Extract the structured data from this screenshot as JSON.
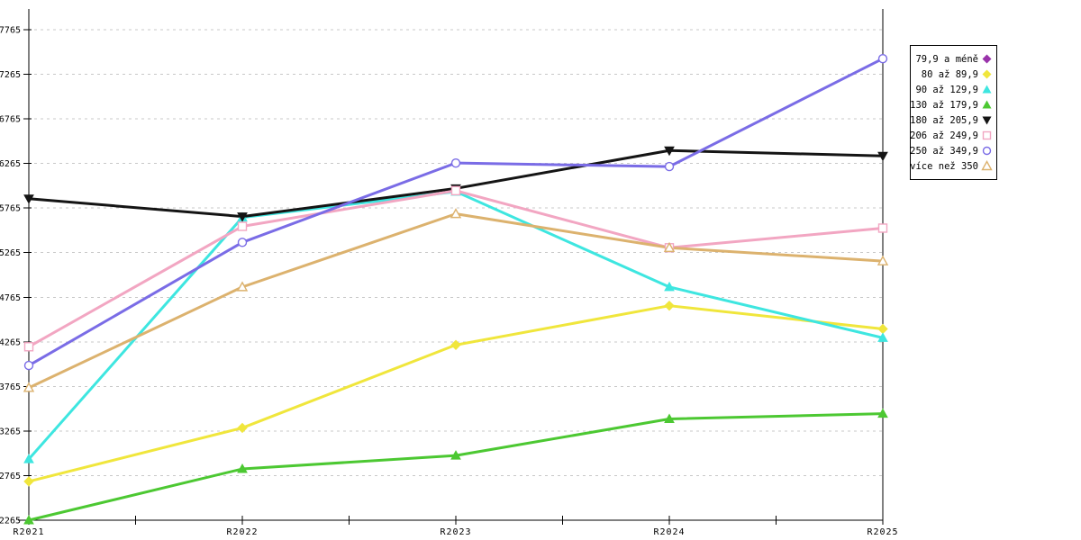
{
  "chart_data": {
    "type": "line",
    "categories": [
      "R2021",
      "R2022",
      "R2023",
      "R2024",
      "R2025"
    ],
    "series": [
      {
        "name": "79,9 a méně",
        "color": "#9933aa",
        "marker": "diamond-filled",
        "values": []
      },
      {
        "name": "80 až 89,9",
        "color": "#f0e63c",
        "marker": "diamond-filled",
        "values": [
          2700,
          3300,
          4230,
          4670,
          4410
        ]
      },
      {
        "name": "90 až 129,9",
        "color": "#3ee6e0",
        "marker": "triangle-up-filled",
        "values": [
          2950,
          5660,
          5950,
          4880,
          4310
        ]
      },
      {
        "name": "130 až 179,9",
        "color": "#4cc832",
        "marker": "triangle-up-filled",
        "values": [
          2265,
          2840,
          2990,
          3400,
          3460
        ]
      },
      {
        "name": "180 až 205,9",
        "color": "#141414",
        "marker": "triangle-down-filled",
        "values": [
          5870,
          5670,
          5985,
          6410,
          6350
        ]
      },
      {
        "name": "206 až 249,9",
        "color": "#f2a6c2",
        "marker": "square-open",
        "values": [
          4210,
          5560,
          5960,
          5320,
          5540
        ]
      },
      {
        "name": "250 až 349,9",
        "color": "#7a6ce6",
        "marker": "circle-open",
        "values": [
          4000,
          5380,
          6270,
          6230,
          7440
        ]
      },
      {
        "name": "více než 350",
        "color": "#dcb26e",
        "marker": "triangle-up-open",
        "values": [
          3750,
          4880,
          5700,
          5320,
          5170
        ]
      }
    ],
    "ylim": [
      2265,
      7765
    ],
    "yticks": [
      2265,
      2765,
      3265,
      3765,
      4265,
      4765,
      5265,
      5765,
      6265,
      6765,
      7265,
      7765
    ],
    "grid": true,
    "gridline_color": "#c8c8c8",
    "axis_color": "#000000",
    "legend_position": "right",
    "title": "",
    "xlabel": "",
    "ylabel": ""
  }
}
